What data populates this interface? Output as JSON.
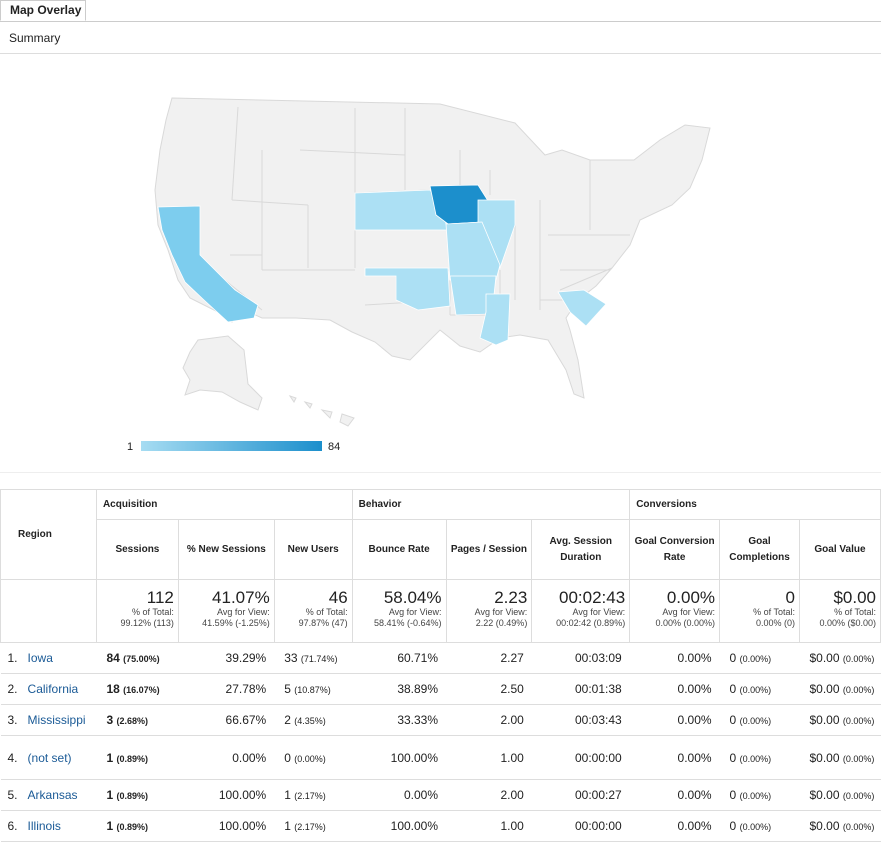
{
  "tab": {
    "label": "Map Overlay"
  },
  "subtab": {
    "label": "Summary"
  },
  "legend": {
    "min": "1",
    "max": "84"
  },
  "map_regions": [
    {
      "state": "Iowa",
      "sessions": 84,
      "color": "#1c8fcc"
    },
    {
      "state": "California",
      "sessions": 18,
      "color": "#7dcdee"
    },
    {
      "state": "Mississippi",
      "sessions": 3,
      "color": "#a6dcf2"
    },
    {
      "state": "Arkansas",
      "sessions": 1,
      "color": "#ace0f4"
    },
    {
      "state": "Illinois",
      "sessions": 1,
      "color": "#ace0f4"
    },
    {
      "state": "Nebraska",
      "sessions": 1,
      "color": "#ace0f4"
    },
    {
      "state": "Missouri",
      "sessions": 1,
      "color": "#ace0f4"
    },
    {
      "state": "Oklahoma",
      "sessions": 1,
      "color": "#ace0f4"
    },
    {
      "state": "South Carolina",
      "sessions": 1,
      "color": "#ace0f4"
    }
  ],
  "table": {
    "groups": {
      "acquisition": "Acquisition",
      "behavior": "Behavior",
      "conversions": "Conversions"
    },
    "headers": {
      "region": "Region",
      "sessions": "Sessions",
      "new_sessions": "% New Sessions",
      "new_users": "New Users",
      "bounce": "Bounce Rate",
      "pages": "Pages / Session",
      "duration": "Avg. Session Duration",
      "gcr": "Goal Conversion Rate",
      "gcomp": "Goal Completions",
      "gval": "Goal Value"
    },
    "totals": {
      "sessions": {
        "value": "112",
        "sub1": "% of Total:",
        "sub2": "99.12% (113)"
      },
      "new_sessions": {
        "value": "41.07%",
        "sub1": "Avg for View:",
        "sub2": "41.59% (-1.25%)"
      },
      "new_users": {
        "value": "46",
        "sub1": "% of Total:",
        "sub2": "97.87% (47)"
      },
      "bounce": {
        "value": "58.04%",
        "sub1": "Avg for View:",
        "sub2": "58.41% (-0.64%)"
      },
      "pages": {
        "value": "2.23",
        "sub1": "Avg for View:",
        "sub2": "2.22 (0.49%)"
      },
      "duration": {
        "value": "00:02:43",
        "sub1": "Avg for View:",
        "sub2": "00:02:42 (0.89%)"
      },
      "gcr": {
        "value": "0.00%",
        "sub1": "Avg for View:",
        "sub2": "0.00% (0.00%)"
      },
      "gcomp": {
        "value": "0",
        "sub1": "% of Total:",
        "sub2": "0.00% (0)"
      },
      "gval": {
        "value": "$0.00",
        "sub1": "% of Total:",
        "sub2": "0.00% ($0.00)"
      }
    },
    "rows": [
      {
        "idx": "1.",
        "region": "Iowa",
        "sessions": "84",
        "sessions_pct": "(75.00%)",
        "new_sessions": "39.29%",
        "new_users": "33",
        "new_users_pct": "(71.74%)",
        "bounce": "60.71%",
        "pages": "2.27",
        "duration": "00:03:09",
        "gcr": "0.00%",
        "gcomp": "0",
        "gcomp_pct": "(0.00%)",
        "gval": "$0.00",
        "gval_pct": "(0.00%)"
      },
      {
        "idx": "2.",
        "region": "California",
        "sessions": "18",
        "sessions_pct": "(16.07%)",
        "new_sessions": "27.78%",
        "new_users": "5",
        "new_users_pct": "(10.87%)",
        "bounce": "38.89%",
        "pages": "2.50",
        "duration": "00:01:38",
        "gcr": "0.00%",
        "gcomp": "0",
        "gcomp_pct": "(0.00%)",
        "gval": "$0.00",
        "gval_pct": "(0.00%)"
      },
      {
        "idx": "3.",
        "region": "Mississippi",
        "sessions": "3",
        "sessions_pct": "(2.68%)",
        "new_sessions": "66.67%",
        "new_users": "2",
        "new_users_pct": "(4.35%)",
        "bounce": "33.33%",
        "pages": "2.00",
        "duration": "00:03:43",
        "gcr": "0.00%",
        "gcomp": "0",
        "gcomp_pct": "(0.00%)",
        "gval": "$0.00",
        "gval_pct": "(0.00%)"
      },
      {
        "idx": "4.",
        "region": "(not set)",
        "sessions": "1",
        "sessions_pct": "(0.89%)",
        "new_sessions": "0.00%",
        "new_users": "0",
        "new_users_pct": "(0.00%)",
        "bounce": "100.00%",
        "pages": "1.00",
        "duration": "00:00:00",
        "gcr": "0.00%",
        "gcomp": "0",
        "gcomp_pct": "(0.00%)",
        "gval": "$0.00",
        "gval_pct": "(0.00%)"
      },
      {
        "idx": "5.",
        "region": "Arkansas",
        "sessions": "1",
        "sessions_pct": "(0.89%)",
        "new_sessions": "100.00%",
        "new_users": "1",
        "new_users_pct": "(2.17%)",
        "bounce": "0.00%",
        "pages": "2.00",
        "duration": "00:00:27",
        "gcr": "0.00%",
        "gcomp": "0",
        "gcomp_pct": "(0.00%)",
        "gval": "$0.00",
        "gval_pct": "(0.00%)"
      },
      {
        "idx": "6.",
        "region": "Illinois",
        "sessions": "1",
        "sessions_pct": "(0.89%)",
        "new_sessions": "100.00%",
        "new_users": "1",
        "new_users_pct": "(2.17%)",
        "bounce": "100.00%",
        "pages": "1.00",
        "duration": "00:00:00",
        "gcr": "0.00%",
        "gcomp": "0",
        "gcomp_pct": "(0.00%)",
        "gval": "$0.00",
        "gval_pct": "(0.00%)"
      }
    ]
  }
}
